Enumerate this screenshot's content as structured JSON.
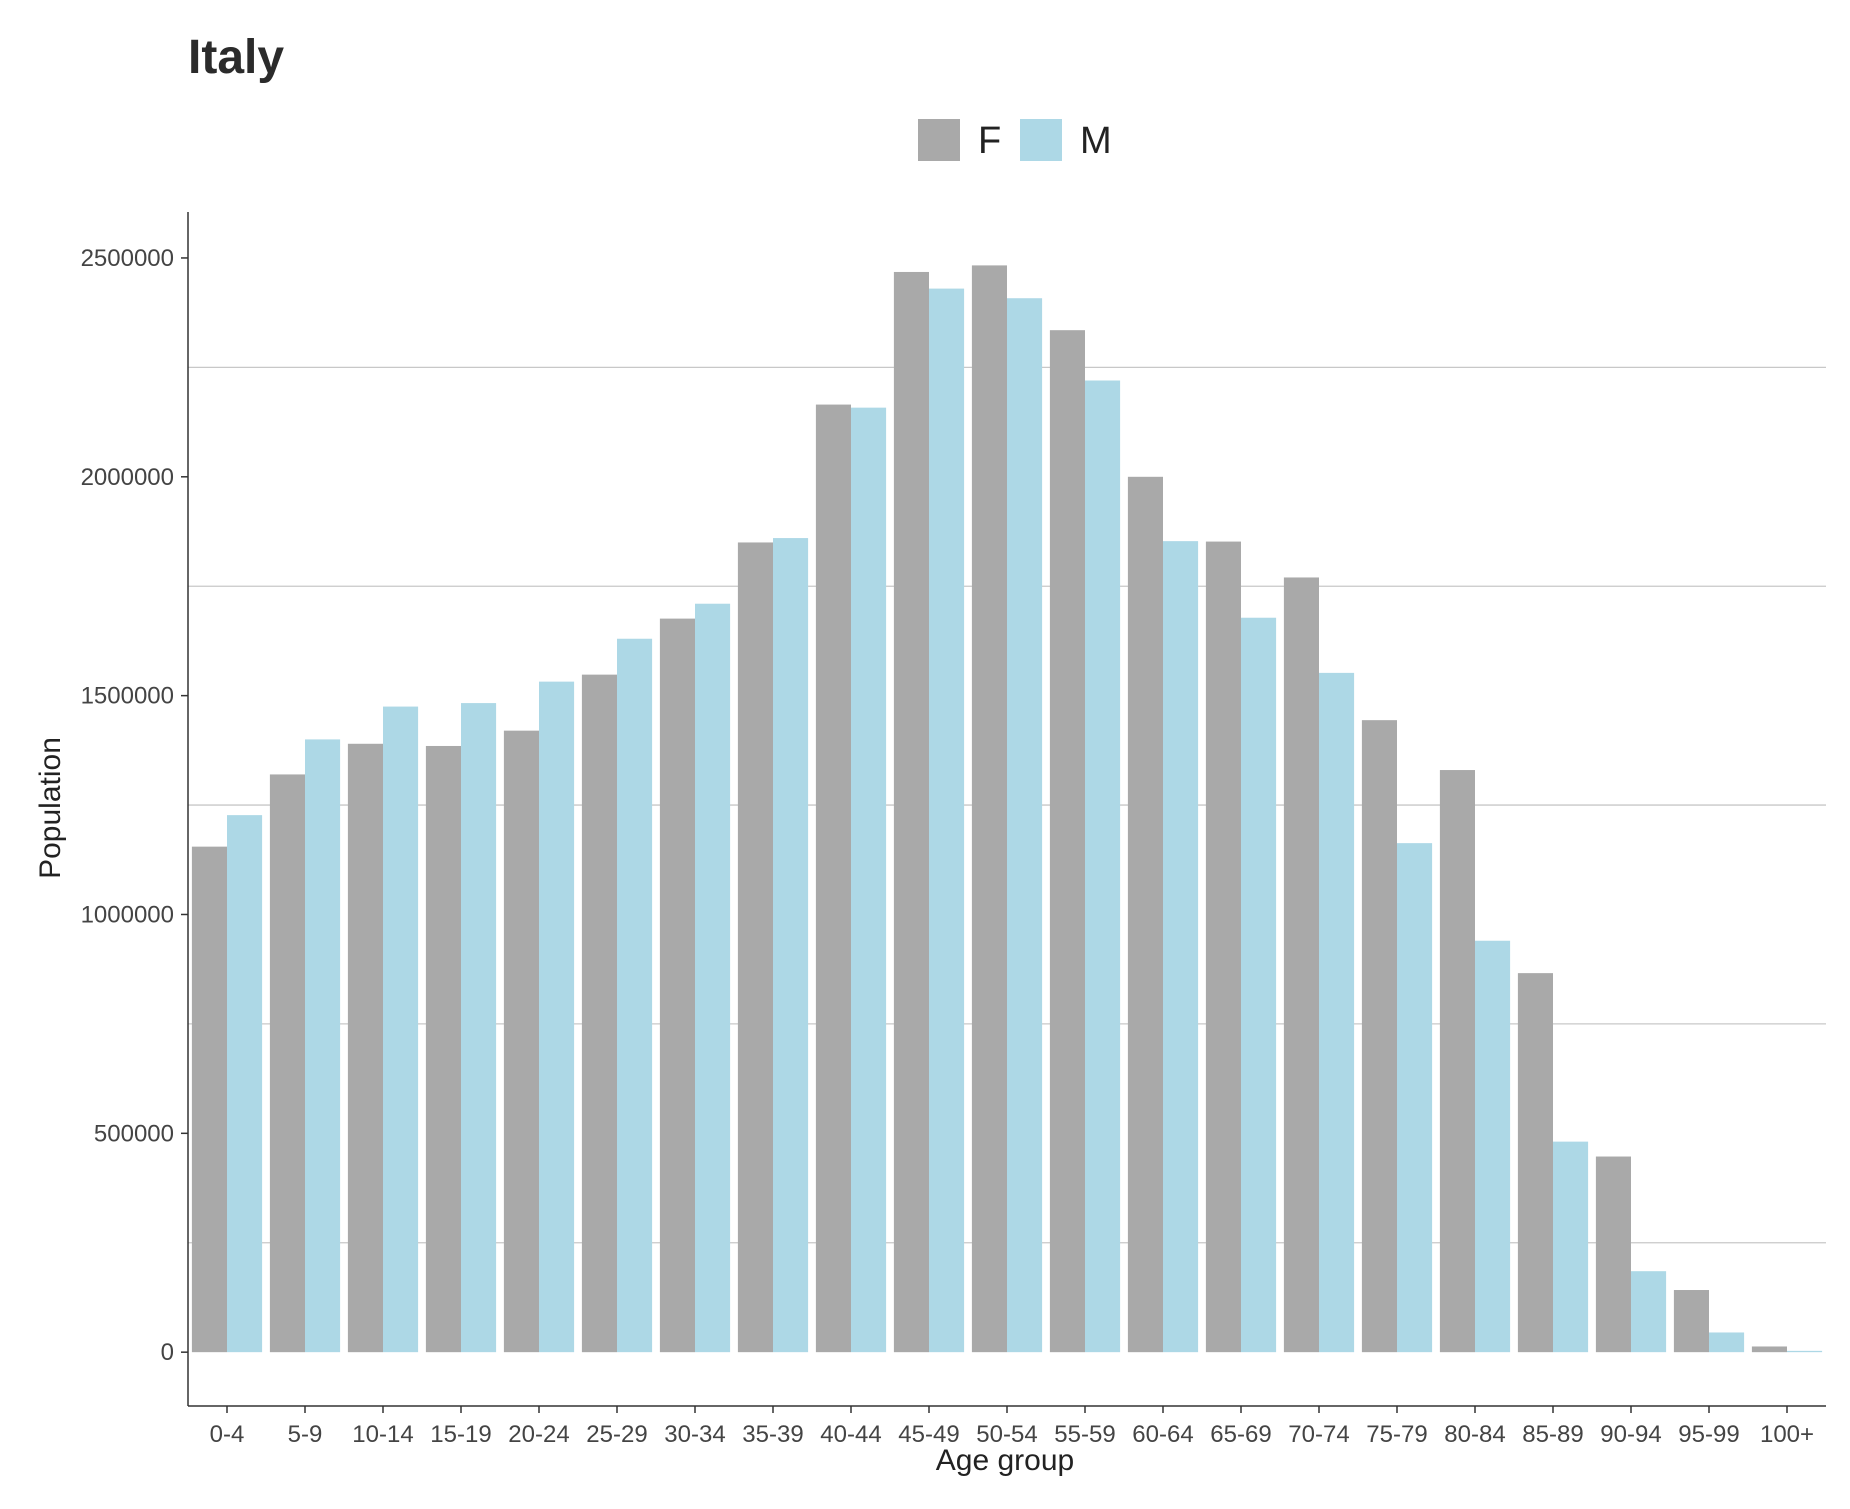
{
  "chart_data": {
    "type": "bar",
    "title": "Italy",
    "xlabel": "Age group",
    "ylabel": "Population",
    "categories": [
      "0-4",
      "5-9",
      "10-14",
      "15-19",
      "20-24",
      "25-29",
      "30-34",
      "35-39",
      "40-44",
      "45-49",
      "50-54",
      "55-59",
      "60-64",
      "65-69",
      "70-74",
      "75-79",
      "80-84",
      "85-89",
      "90-94",
      "95-99",
      "100+"
    ],
    "series": [
      {
        "name": "F",
        "color": "#a9a9a9",
        "values": [
          1155000,
          1320000,
          1390000,
          1385000,
          1420000,
          1548000,
          1676000,
          1850000,
          2165000,
          2468000,
          2483000,
          2335000,
          2000000,
          1852000,
          1770000,
          1444000,
          1330000,
          866000,
          447000,
          142000,
          13000
        ]
      },
      {
        "name": "M",
        "color": "#add8e6",
        "values": [
          1227000,
          1400000,
          1475000,
          1483000,
          1532000,
          1630000,
          1710000,
          1860000,
          2158000,
          2430000,
          2408000,
          2220000,
          1853000,
          1678000,
          1552000,
          1163000,
          940000,
          481000,
          185000,
          45000,
          3000
        ]
      }
    ],
    "yticks": [
      0,
      500000,
      1000000,
      1500000,
      2000000,
      2500000
    ],
    "ytick_labels": [
      "0",
      "500000",
      "1000000",
      "1500000",
      "2000000",
      "2500000"
    ],
    "minor_gridlines": [
      250000,
      750000,
      1250000,
      1750000,
      2250000
    ],
    "ylim": [
      -123000,
      2605000
    ],
    "grid": "horizontal minor lines",
    "legend_position": "top-center"
  }
}
